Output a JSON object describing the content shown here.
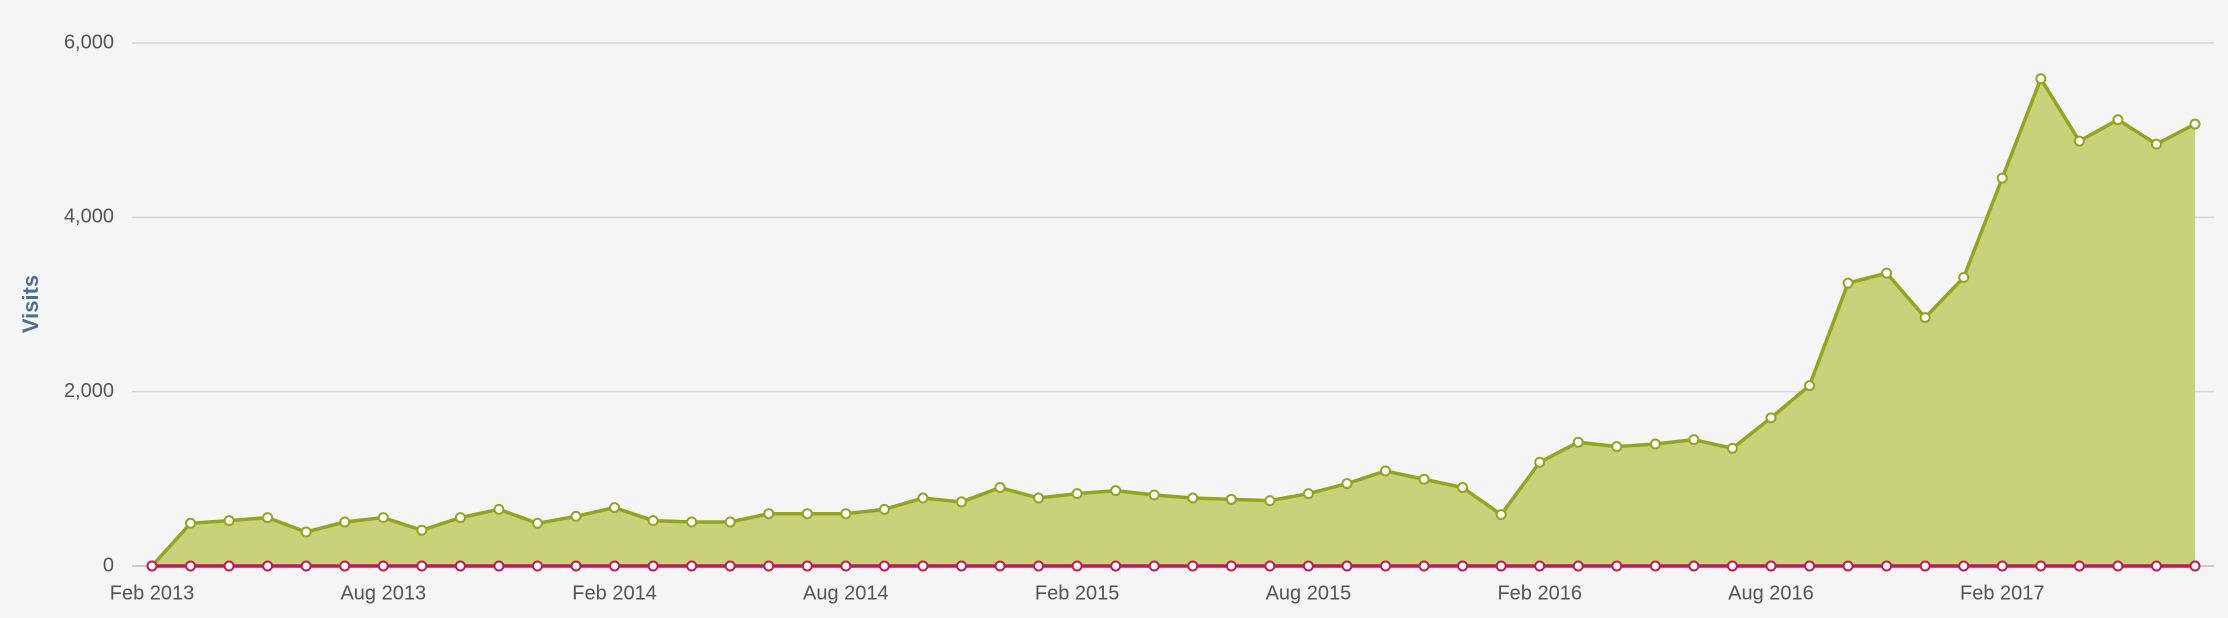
{
  "chart_data": {
    "type": "area",
    "y_label": "Visits",
    "categories": [
      "Feb 2013",
      null,
      null,
      null,
      null,
      null,
      "Aug 2013",
      null,
      null,
      null,
      null,
      null,
      "Feb 2014",
      null,
      null,
      null,
      null,
      null,
      "Aug 2014",
      null,
      null,
      null,
      null,
      null,
      "Feb 2015",
      null,
      null,
      null,
      null,
      null,
      "Aug 2015",
      null,
      null,
      null,
      null,
      null,
      "Feb 2016",
      null,
      null,
      null,
      null,
      null,
      "Aug 2016",
      null,
      null,
      null,
      null,
      null,
      "Feb 2017",
      null,
      null,
      null,
      null,
      null
    ],
    "series": [
      {
        "color": "#94a51c",
        "fill": "#c8d27a",
        "values": [
          0,
          490,
          520,
          555,
          390,
          505,
          555,
          410,
          555,
          650,
          490,
          570,
          670,
          520,
          505,
          505,
          600,
          600,
          600,
          650,
          780,
          735,
          900,
          780,
          830,
          865,
          815,
          780,
          765,
          750,
          830,
          945,
          1090,
          995,
          900,
          590,
          1190,
          1420,
          1370,
          1400,
          1450,
          1350,
          1700,
          2070,
          3245,
          3360,
          2850,
          3310,
          4450,
          5590,
          4875,
          5120,
          4840,
          5070
        ]
      },
      {
        "color": "#c2185b",
        "values": [
          0,
          0,
          0,
          0,
          0,
          0,
          0,
          0,
          0,
          0,
          0,
          0,
          0,
          0,
          0,
          0,
          0,
          0,
          0,
          0,
          0,
          0,
          0,
          0,
          0,
          0,
          0,
          0,
          0,
          0,
          0,
          0,
          0,
          0,
          0,
          0,
          0,
          0,
          0,
          0,
          0,
          0,
          0,
          0,
          0,
          0,
          0,
          0,
          0,
          0,
          0,
          0,
          0,
          0
        ]
      }
    ],
    "ylim": [
      0,
      6000
    ],
    "yticks": [
      0,
      {
        "value": 2000,
        "label": "2,000"
      },
      {
        "value": 4000,
        "label": "4,000"
      },
      {
        "value": 6000,
        "label": "6,000"
      }
    ],
    "grid": true
  }
}
